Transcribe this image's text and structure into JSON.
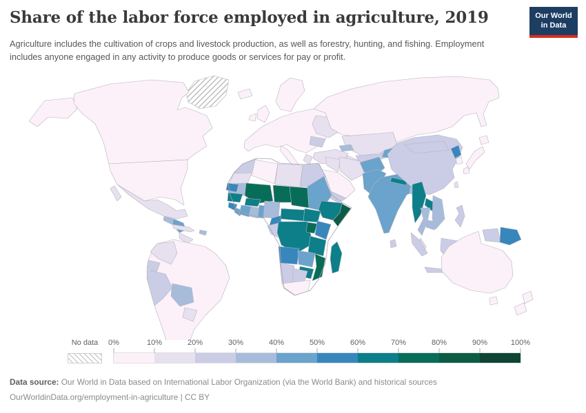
{
  "header": {
    "title": "Share of the labor force employed in agriculture, 2019",
    "subtitle_line1": "Agriculture includes the cultivation of crops and livestock production, as well as forestry, hunting, and fishing.",
    "subtitle_line2": "Employment includes anyone engaged in any activity to produce goods or services for pay or profit.",
    "logo": {
      "line1": "Our World",
      "line2": "in Data",
      "bg": "#1d3d63",
      "accent": "#dc2e1c",
      "text_color": "#ffffff"
    }
  },
  "footer": {
    "source_label": "Data source:",
    "source_text": " Our World in Data based on International Labor Organization (via the World Bank) and historical sources",
    "license_line": "OurWorldinData.org/employment-in-agriculture | CC BY"
  },
  "chart_data": {
    "type": "heatmap",
    "subtype": "world-choropleth-map",
    "title": "Share of the labor force employed in agriculture, 2019",
    "unit": "% of labor force employed in agriculture",
    "legend": {
      "position": "bottom",
      "no_data_label": "No data",
      "no_data_hatch": {
        "bg": "#ffffff",
        "line": "#bdbdbd"
      },
      "tick_labels": [
        "0%",
        "10%",
        "20%",
        "30%",
        "40%",
        "50%",
        "60%",
        "70%",
        "80%",
        "90%",
        "100%"
      ],
      "bins": [
        {
          "label": "0-10%",
          "color": "#fcf1f8"
        },
        {
          "label": "10-20%",
          "color": "#e7e0ee"
        },
        {
          "label": "20-30%",
          "color": "#cacde5"
        },
        {
          "label": "30-40%",
          "color": "#a7bcdb"
        },
        {
          "label": "40-50%",
          "color": "#6aa3cc"
        },
        {
          "label": "50-60%",
          "color": "#3787bd"
        },
        {
          "label": "60-70%",
          "color": "#0c7f89"
        },
        {
          "label": "70-80%",
          "color": "#086d58"
        },
        {
          "label": "80-90%",
          "color": "#0c5c45"
        },
        {
          "label": "90-100%",
          "color": "#0e4433"
        }
      ]
    },
    "regions": [
      {
        "id": "greenland",
        "name": "Greenland",
        "bin": "no-data"
      },
      {
        "id": "canada",
        "name": "Canada",
        "bin": "0-10%"
      },
      {
        "id": "united-states",
        "name": "United States",
        "bin": "0-10%"
      },
      {
        "id": "alaska",
        "name": "United States (Alaska)",
        "bin": "0-10%"
      },
      {
        "id": "mexico",
        "name": "Mexico",
        "bin": "10-20%"
      },
      {
        "id": "guatemala",
        "name": "Guatemala",
        "bin": "30-40%"
      },
      {
        "id": "honduras-nicaragua",
        "name": "Honduras & Nicaragua",
        "bin": "40-50%"
      },
      {
        "id": "panama-costa-rica",
        "name": "Costa Rica & Panama",
        "bin": "10-20%"
      },
      {
        "id": "cuba",
        "name": "Cuba",
        "bin": "10-20%"
      },
      {
        "id": "hispaniola",
        "name": "Haiti",
        "bin": "30-40%"
      },
      {
        "id": "brazil",
        "name": "Brazil",
        "bin": "0-10%"
      },
      {
        "id": "argentina",
        "name": "Argentina",
        "bin": "0-10%"
      },
      {
        "id": "chile",
        "name": "Chile",
        "bin": "0-10%"
      },
      {
        "id": "venezuela",
        "name": "Venezuela",
        "bin": "0-10%"
      },
      {
        "id": "colombia",
        "name": "Colombia",
        "bin": "10-20%"
      },
      {
        "id": "ecuador",
        "name": "Ecuador",
        "bin": "20-30%"
      },
      {
        "id": "peru",
        "name": "Peru",
        "bin": "20-30%"
      },
      {
        "id": "bolivia",
        "name": "Bolivia",
        "bin": "30-40%"
      },
      {
        "id": "paraguay",
        "name": "Paraguay",
        "bin": "10-20%"
      },
      {
        "id": "europe",
        "name": "Europe (most countries)",
        "bin": "0-10%"
      },
      {
        "id": "british-isles",
        "name": "United Kingdom & Ireland",
        "bin": "0-10%"
      },
      {
        "id": "iceland",
        "name": "Iceland",
        "bin": "0-10%"
      },
      {
        "id": "scandinavia",
        "name": "Scandinavia",
        "bin": "0-10%"
      },
      {
        "id": "ukraine",
        "name": "Ukraine",
        "bin": "10-20%"
      },
      {
        "id": "romania",
        "name": "Romania",
        "bin": "20-30%"
      },
      {
        "id": "greece",
        "name": "Greece",
        "bin": "10-20%"
      },
      {
        "id": "turkey",
        "name": "Turkey",
        "bin": "10-20%"
      },
      {
        "id": "russia",
        "name": "Russia",
        "bin": "0-10%"
      },
      {
        "id": "kazakhstan",
        "name": "Kazakhstan",
        "bin": "10-20%"
      },
      {
        "id": "uzbekistan",
        "name": "Uzbekistan",
        "bin": "20-30%"
      },
      {
        "id": "turkmenistan",
        "name": "Turkmenistan",
        "bin": "10-20%"
      },
      {
        "id": "kyrgyzstan-tajikistan",
        "name": "Kyrgyzstan & Tajikistan",
        "bin": "40-50%"
      },
      {
        "id": "caucasus",
        "name": "Georgia & Azerbaijan",
        "bin": "30-40%"
      },
      {
        "id": "iran",
        "name": "Iran",
        "bin": "10-20%"
      },
      {
        "id": "iraq-syria",
        "name": "Iraq & Syria",
        "bin": "10-20%"
      },
      {
        "id": "saudi-arabia",
        "name": "Saudi Arabia",
        "bin": "0-10%"
      },
      {
        "id": "yemen",
        "name": "Yemen",
        "bin": "20-30%"
      },
      {
        "id": "afghanistan",
        "name": "Afghanistan",
        "bin": "40-50%"
      },
      {
        "id": "pakistan",
        "name": "Pakistan",
        "bin": "40-50%"
      },
      {
        "id": "india",
        "name": "India",
        "bin": "40-50%"
      },
      {
        "id": "nepal",
        "name": "Nepal",
        "bin": "60-70%"
      },
      {
        "id": "bangladesh",
        "name": "Bangladesh",
        "bin": "30-40%"
      },
      {
        "id": "sri-lanka",
        "name": "Sri Lanka",
        "bin": "20-30%"
      },
      {
        "id": "china",
        "name": "China",
        "bin": "20-30%"
      },
      {
        "id": "mongolia",
        "name": "Mongolia",
        "bin": "20-30%"
      },
      {
        "id": "north-korea",
        "name": "North Korea",
        "bin": "50-60%"
      },
      {
        "id": "south-korea",
        "name": "South Korea",
        "bin": "0-10%"
      },
      {
        "id": "japan",
        "name": "Japan",
        "bin": "0-10%"
      },
      {
        "id": "taiwan",
        "name": "Taiwan",
        "bin": "10-20%"
      },
      {
        "id": "myanmar",
        "name": "Myanmar",
        "bin": "60-70%"
      },
      {
        "id": "thailand",
        "name": "Thailand",
        "bin": "30-40%"
      },
      {
        "id": "laos",
        "name": "Laos",
        "bin": "60-70%"
      },
      {
        "id": "vietnam",
        "name": "Vietnam",
        "bin": "30-40%"
      },
      {
        "id": "cambodia",
        "name": "Cambodia",
        "bin": "30-40%"
      },
      {
        "id": "malaysia",
        "name": "Malaysia",
        "bin": "10-20%"
      },
      {
        "id": "indonesia",
        "name": "Indonesia",
        "bin": "20-30%"
      },
      {
        "id": "philippines",
        "name": "Philippines",
        "bin": "20-30%"
      },
      {
        "id": "papua-new-guinea",
        "name": "Papua New Guinea",
        "bin": "50-60%"
      },
      {
        "id": "australia",
        "name": "Australia",
        "bin": "0-10%"
      },
      {
        "id": "new-zealand",
        "name": "New Zealand",
        "bin": "0-10%"
      },
      {
        "id": "morocco",
        "name": "Morocco",
        "bin": "20-30%"
      },
      {
        "id": "western-sahara",
        "name": "Western Sahara",
        "bin": "10-20%"
      },
      {
        "id": "algeria",
        "name": "Algeria",
        "bin": "0-10%"
      },
      {
        "id": "libya",
        "name": "Libya",
        "bin": "10-20%"
      },
      {
        "id": "egypt",
        "name": "Egypt",
        "bin": "20-30%"
      },
      {
        "id": "mauritania",
        "name": "Mauritania",
        "bin": "30-40%"
      },
      {
        "id": "mali",
        "name": "Mali",
        "bin": "70-80%"
      },
      {
        "id": "niger",
        "name": "Niger",
        "bin": "70-80%"
      },
      {
        "id": "chad",
        "name": "Chad",
        "bin": "70-80%"
      },
      {
        "id": "sudan",
        "name": "Sudan",
        "bin": "40-50%"
      },
      {
        "id": "ethiopia",
        "name": "Ethiopia",
        "bin": "60-70%"
      },
      {
        "id": "somalia",
        "name": "Somalia",
        "bin": "80-90%"
      },
      {
        "id": "senegal",
        "name": "Senegal",
        "bin": "50-60%"
      },
      {
        "id": "guinea",
        "name": "Guinea",
        "bin": "60-70%"
      },
      {
        "id": "sierra-leone",
        "name": "Sierra Leone",
        "bin": "50-60%"
      },
      {
        "id": "liberia",
        "name": "Liberia",
        "bin": "40-50%"
      },
      {
        "id": "ivory-coast",
        "name": "Cote d'Ivoire",
        "bin": "40-50%"
      },
      {
        "id": "burkina-faso",
        "name": "Burkina Faso",
        "bin": "60-70%"
      },
      {
        "id": "ghana",
        "name": "Ghana",
        "bin": "30-40%"
      },
      {
        "id": "togo-benin",
        "name": "Togo & Benin",
        "bin": "40-50%"
      },
      {
        "id": "nigeria",
        "name": "Nigeria",
        "bin": "30-40%"
      },
      {
        "id": "cameroon",
        "name": "Cameroon",
        "bin": "50-60%"
      },
      {
        "id": "central-african-republic",
        "name": "Central African Republic",
        "bin": "60-70%"
      },
      {
        "id": "south-sudan",
        "name": "South Sudan",
        "bin": "60-70%"
      },
      {
        "id": "gabon-congo",
        "name": "Gabon & Congo",
        "bin": "20-30%"
      },
      {
        "id": "dr-congo",
        "name": "Democratic Republic of Congo",
        "bin": "60-70%"
      },
      {
        "id": "uganda",
        "name": "Uganda",
        "bin": "70-80%"
      },
      {
        "id": "kenya",
        "name": "Kenya",
        "bin": "50-60%"
      },
      {
        "id": "tanzania",
        "name": "Tanzania",
        "bin": "60-70%"
      },
      {
        "id": "angola",
        "name": "Angola",
        "bin": "50-60%"
      },
      {
        "id": "zambia",
        "name": "Zambia",
        "bin": "40-50%"
      },
      {
        "id": "mozambique",
        "name": "Mozambique",
        "bin": "70-80%"
      },
      {
        "id": "zimbabwe",
        "name": "Zimbabwe",
        "bin": "60-70%"
      },
      {
        "id": "namibia",
        "name": "Namibia",
        "bin": "20-30%"
      },
      {
        "id": "botswana",
        "name": "Botswana",
        "bin": "20-30%"
      },
      {
        "id": "south-africa",
        "name": "South Africa",
        "bin": "0-10%"
      },
      {
        "id": "madagascar",
        "name": "Madagascar",
        "bin": "60-70%"
      }
    ]
  }
}
